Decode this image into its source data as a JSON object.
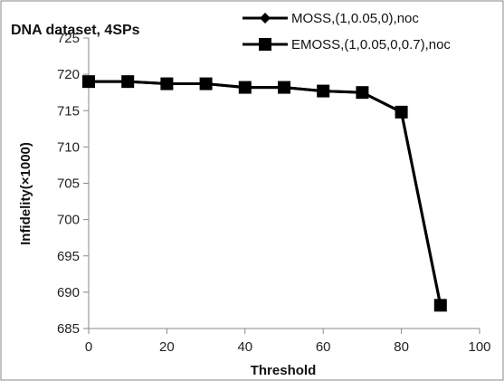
{
  "chart_data": {
    "type": "line",
    "title": "DNA dataset, 4SPs",
    "xlabel": "Threshold",
    "ylabel": "Infidelity(×1000)",
    "xlim": [
      0,
      100
    ],
    "ylim": [
      685,
      725
    ],
    "xticks": [
      0,
      20,
      40,
      60,
      80,
      100
    ],
    "yticks": [
      685,
      690,
      695,
      700,
      705,
      710,
      715,
      720,
      725
    ],
    "grid": false,
    "legend_position": "top-right",
    "x": [
      0,
      10,
      20,
      30,
      40,
      50,
      60,
      70,
      80,
      90
    ],
    "series": [
      {
        "name": "MOSS,(1,0.05,0),noc",
        "marker": "diamond",
        "color": "#000000",
        "values": [
          719,
          719,
          718.7,
          718.7,
          718.2,
          718.2,
          717.7,
          717.5,
          714.8,
          688.2
        ]
      },
      {
        "name": "EMOSS,(1,0.05,0,0.7),noc",
        "marker": "square",
        "color": "#000000",
        "values": [
          719,
          719,
          718.7,
          718.7,
          718.2,
          718.2,
          717.7,
          717.5,
          714.8,
          688.2
        ]
      }
    ]
  }
}
